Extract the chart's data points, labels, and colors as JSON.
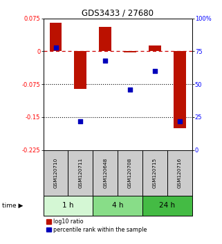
{
  "title": "GDS3433 / 27680",
  "samples": [
    "GSM120710",
    "GSM120711",
    "GSM120648",
    "GSM120708",
    "GSM120715",
    "GSM120716"
  ],
  "log10_ratio": [
    0.065,
    -0.085,
    0.055,
    -0.003,
    0.013,
    -0.175
  ],
  "percentile_rank": [
    78,
    22,
    68,
    46,
    60,
    22
  ],
  "groups": [
    {
      "label": "1 h",
      "indices": [
        0,
        1
      ],
      "color": "#d4f7d4"
    },
    {
      "label": "4 h",
      "indices": [
        2,
        3
      ],
      "color": "#88dd88"
    },
    {
      "label": "24 h",
      "indices": [
        4,
        5
      ],
      "color": "#44bb44"
    }
  ],
  "ylim_left": [
    -0.225,
    0.075
  ],
  "ylim_right": [
    0,
    100
  ],
  "yticks_left": [
    0.075,
    0,
    -0.075,
    -0.15,
    -0.225
  ],
  "yticks_right": [
    100,
    75,
    50,
    25,
    0
  ],
  "ytick_labels_left": [
    "0.075",
    "0",
    "-0.075",
    "-0.15",
    "-0.225"
  ],
  "ytick_labels_right": [
    "100%",
    "75",
    "50",
    "25",
    "0"
  ],
  "hlines_dotted": [
    -0.075,
    -0.15
  ],
  "bar_color": "#bb1100",
  "dot_color": "#0000bb",
  "zero_line_color": "#cc0000",
  "sample_bg_color": "#cccccc",
  "background_color": "#ffffff"
}
